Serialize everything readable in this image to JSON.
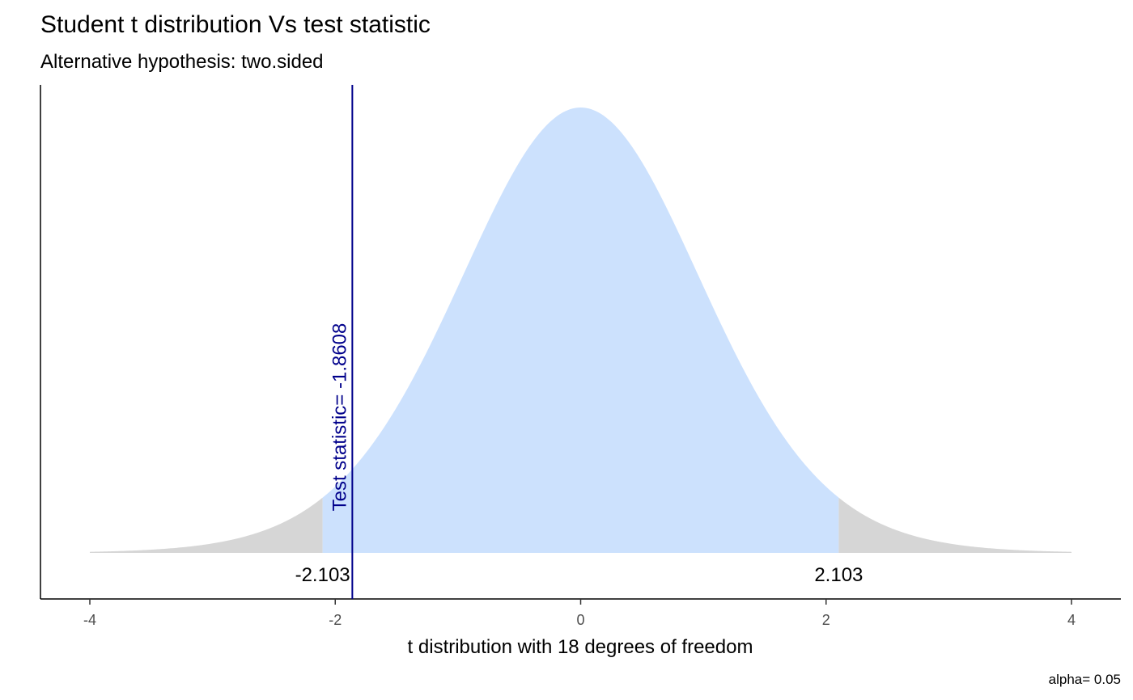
{
  "chart_data": {
    "type": "area",
    "title": "Student t distribution Vs test statistic",
    "subtitle": "Alternative hypothesis: two.sided",
    "xlabel": "t distribution with 18 degrees of freedom",
    "ylabel": "",
    "degrees_of_freedom": 18,
    "xlim": [
      -4,
      4
    ],
    "x_ticks": [
      -4,
      -2,
      0,
      2,
      4
    ],
    "x_tick_labels": [
      "-4",
      "-2",
      "0",
      "2",
      "4"
    ],
    "critical_values": [
      -2.103,
      2.103
    ],
    "critical_labels": [
      "-2.103",
      "2.103"
    ],
    "test_statistic": -1.8608,
    "test_statistic_label": "Test statistic= -1.8608",
    "caption": "alpha= 0.05",
    "grid": false,
    "colors": {
      "acceptance_region": "#cce1fd",
      "rejection_region": "#d6d6d6",
      "test_statistic_line": "#00008b",
      "axis": "#000000"
    }
  }
}
